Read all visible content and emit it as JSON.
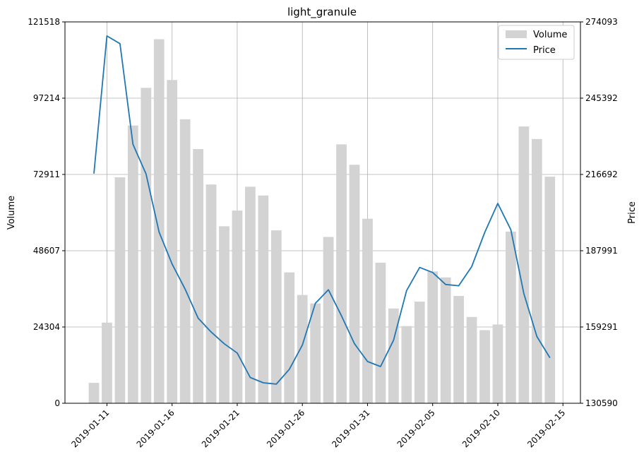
{
  "chart_data": {
    "type": "bar+line",
    "title": "light_granule",
    "ylabel_left": "Volume",
    "ylabel_right": "Price",
    "ylim_left": [
      0,
      121518
    ],
    "ylim_right": [
      130590,
      274093
    ],
    "left_ticks": [
      "0",
      "24304",
      "48607",
      "72911",
      "97214",
      "121518"
    ],
    "right_ticks": [
      "130590",
      "159291",
      "187991",
      "216692",
      "245392",
      "274093"
    ],
    "x_ticks": [
      "2019-01-11",
      "2019-01-16",
      "2019-01-21",
      "2019-01-26",
      "2019-01-31",
      "2019-02-05",
      "2019-02-10",
      "2019-02-15"
    ],
    "grid": true,
    "legend": {
      "position": "upper right",
      "entries": [
        "Volume",
        "Price"
      ]
    },
    "dates": [
      "2019-01-10",
      "2019-01-11",
      "2019-01-12",
      "2019-01-13",
      "2019-01-14",
      "2019-01-15",
      "2019-01-16",
      "2019-01-17",
      "2019-01-18",
      "2019-01-19",
      "2019-01-20",
      "2019-01-21",
      "2019-01-22",
      "2019-01-23",
      "2019-01-24",
      "2019-01-25",
      "2019-01-26",
      "2019-01-27",
      "2019-01-28",
      "2019-01-29",
      "2019-01-30",
      "2019-01-31",
      "2019-02-01",
      "2019-02-02",
      "2019-02-03",
      "2019-02-04",
      "2019-02-05",
      "2019-02-06",
      "2019-02-07",
      "2019-02-08",
      "2019-02-09",
      "2019-02-10",
      "2019-02-11",
      "2019-02-12",
      "2019-02-13",
      "2019-02-14"
    ],
    "series": [
      {
        "name": "Volume",
        "kind": "bar",
        "axis": "left",
        "color": "#d3d3d3",
        "values": [
          6500,
          25700,
          72000,
          88500,
          100500,
          116000,
          103000,
          90500,
          81000,
          69700,
          56400,
          61400,
          69000,
          66200,
          55100,
          41700,
          34500,
          31800,
          53000,
          82500,
          76000,
          58800,
          44800,
          30200,
          24600,
          32400,
          42000,
          40100,
          34200,
          27500,
          23300,
          25100,
          54700,
          88200,
          84200,
          72200
        ]
      },
      {
        "name": "Price",
        "kind": "line",
        "axis": "right",
        "color": "#1f77b4",
        "values": [
          217000,
          268800,
          265900,
          228000,
          216900,
          195000,
          183000,
          173600,
          162600,
          157400,
          153000,
          149500,
          140300,
          138300,
          137800,
          143400,
          152500,
          168200,
          173300,
          163500,
          153000,
          146300,
          144400,
          154300,
          173000,
          181700,
          179800,
          175300,
          174800,
          182000,
          194900,
          205800,
          195900,
          171800,
          155700,
          147700
        ]
      }
    ]
  }
}
